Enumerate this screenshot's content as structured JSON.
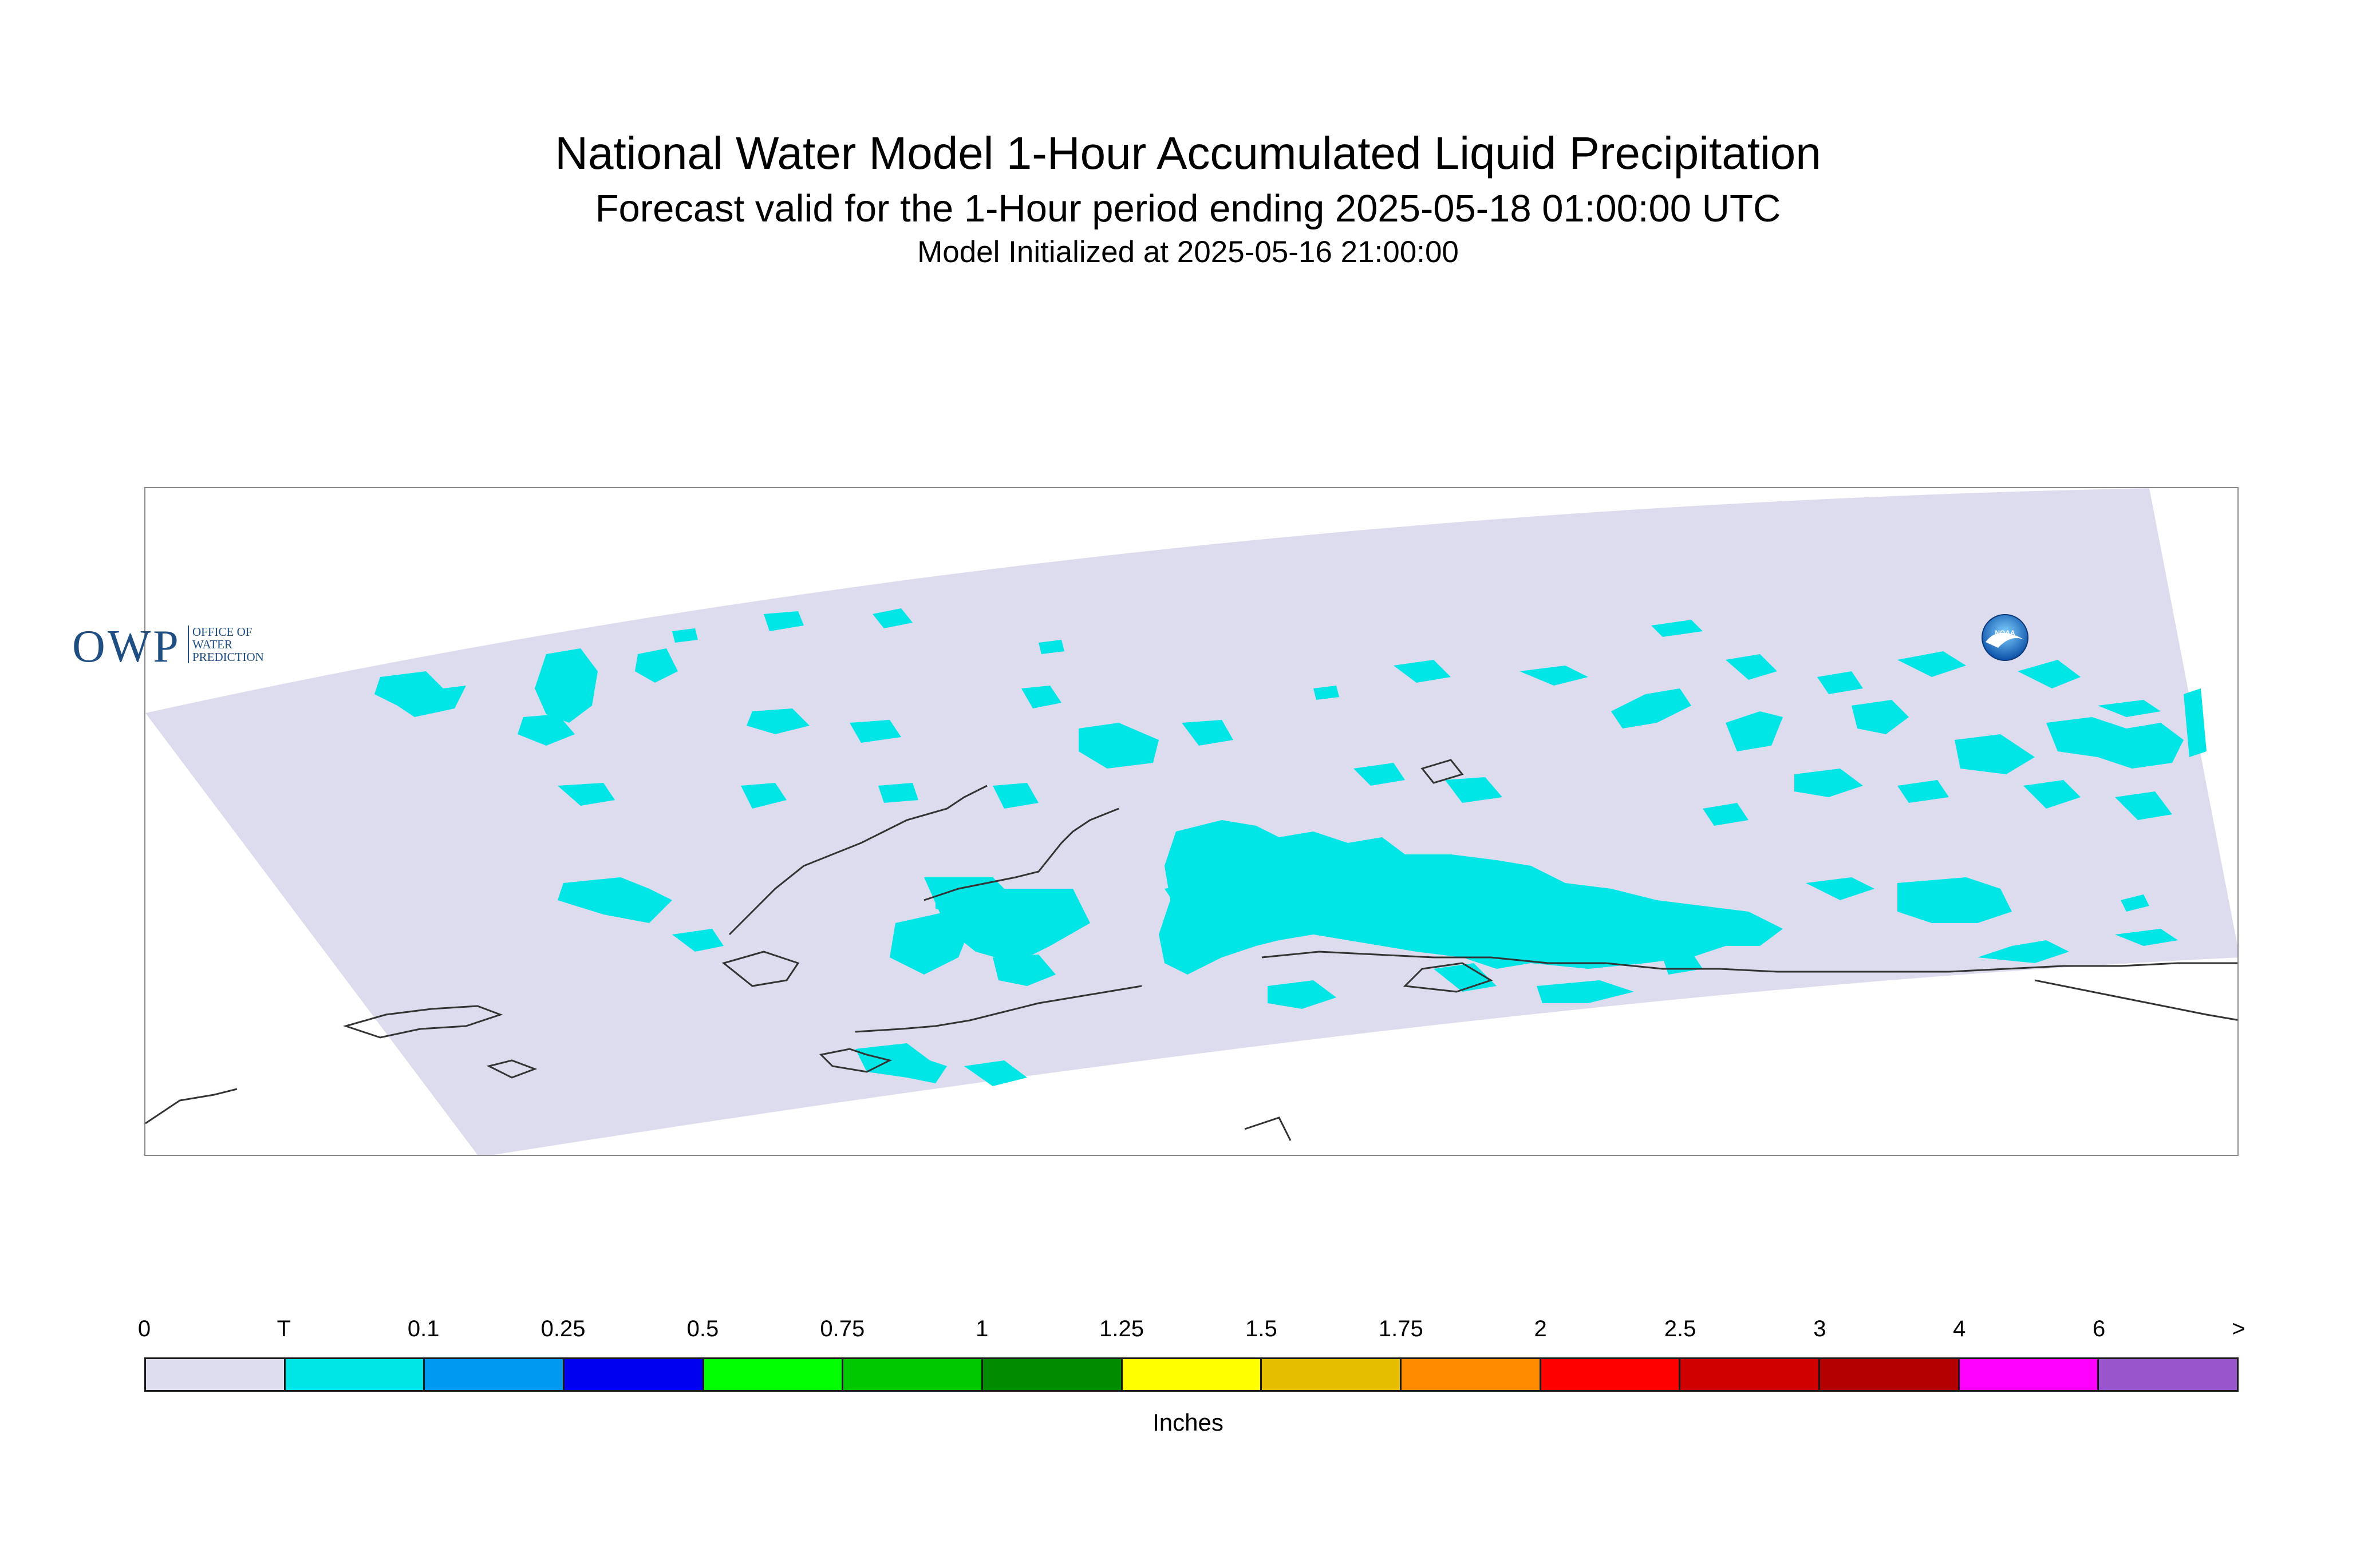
{
  "header": {
    "title": "National Water Model 1-Hour Accumulated Liquid Precipitation",
    "subtitle": "Forecast valid for the 1-Hour period ending 2025-05-18 01:00:00 UTC",
    "initialized": "Model Initialized at 2025-05-16 21:00:00"
  },
  "logo": {
    "owp_text": "OWP",
    "owp_line1": "OFFICE OF",
    "owp_line2": "WATER",
    "owp_line3": "PREDICTION",
    "noaa_text": "NOAA"
  },
  "colors": {
    "domain_fill": "#dcdcee",
    "precip_trace": "#00e5e5",
    "coastline": "#333333"
  },
  "legend": {
    "units": "Inches",
    "labels": [
      "0",
      "T",
      "0.1",
      "0.25",
      "0.5",
      "0.75",
      "1",
      "1.25",
      "1.5",
      "1.75",
      "2",
      "2.5",
      "3",
      "4",
      "6",
      ">"
    ],
    "colors": [
      "#dcdcee",
      "#00e5e5",
      "#0099f2",
      "#0000f0",
      "#00ff00",
      "#00c800",
      "#008c00",
      "#ffff00",
      "#e6be00",
      "#ff8c00",
      "#ff0000",
      "#d00000",
      "#b40000",
      "#ff00ff",
      "#9955cc"
    ]
  }
}
